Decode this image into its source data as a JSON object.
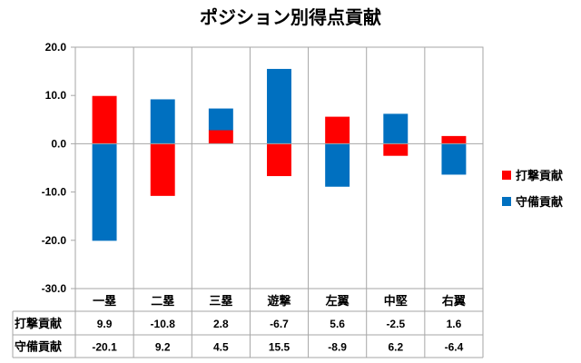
{
  "chart_data": {
    "type": "bar",
    "title": "ポジション別得点貢献",
    "categories": [
      "一塁",
      "二塁",
      "三塁",
      "遊撃",
      "左翼",
      "中堅",
      "右翼"
    ],
    "series": [
      {
        "name": "打撃貢献",
        "color": "#ff0000",
        "values": [
          9.9,
          -10.8,
          2.8,
          -6.7,
          5.6,
          -2.5,
          1.6
        ]
      },
      {
        "name": "守備貢献",
        "color": "#0070c0",
        "values": [
          -20.1,
          9.2,
          4.5,
          15.5,
          -8.9,
          6.2,
          -6.4
        ]
      }
    ],
    "value_labels": [
      [
        "9.9",
        "-10.8",
        "2.8",
        "-6.7",
        "5.6",
        "-2.5",
        "1.6"
      ],
      [
        "-20.1",
        "9.2",
        "4.5",
        "15.5",
        "-8.9",
        "6.2",
        "-6.4"
      ]
    ],
    "ylim": [
      -30,
      20
    ],
    "yticks": [
      "20.0",
      "10.0",
      "0.0",
      "-10.0",
      "-20.0",
      "-30.0"
    ],
    "stacked": true,
    "grid": "vertical category gridlines",
    "legend": "right",
    "data_table": true
  }
}
